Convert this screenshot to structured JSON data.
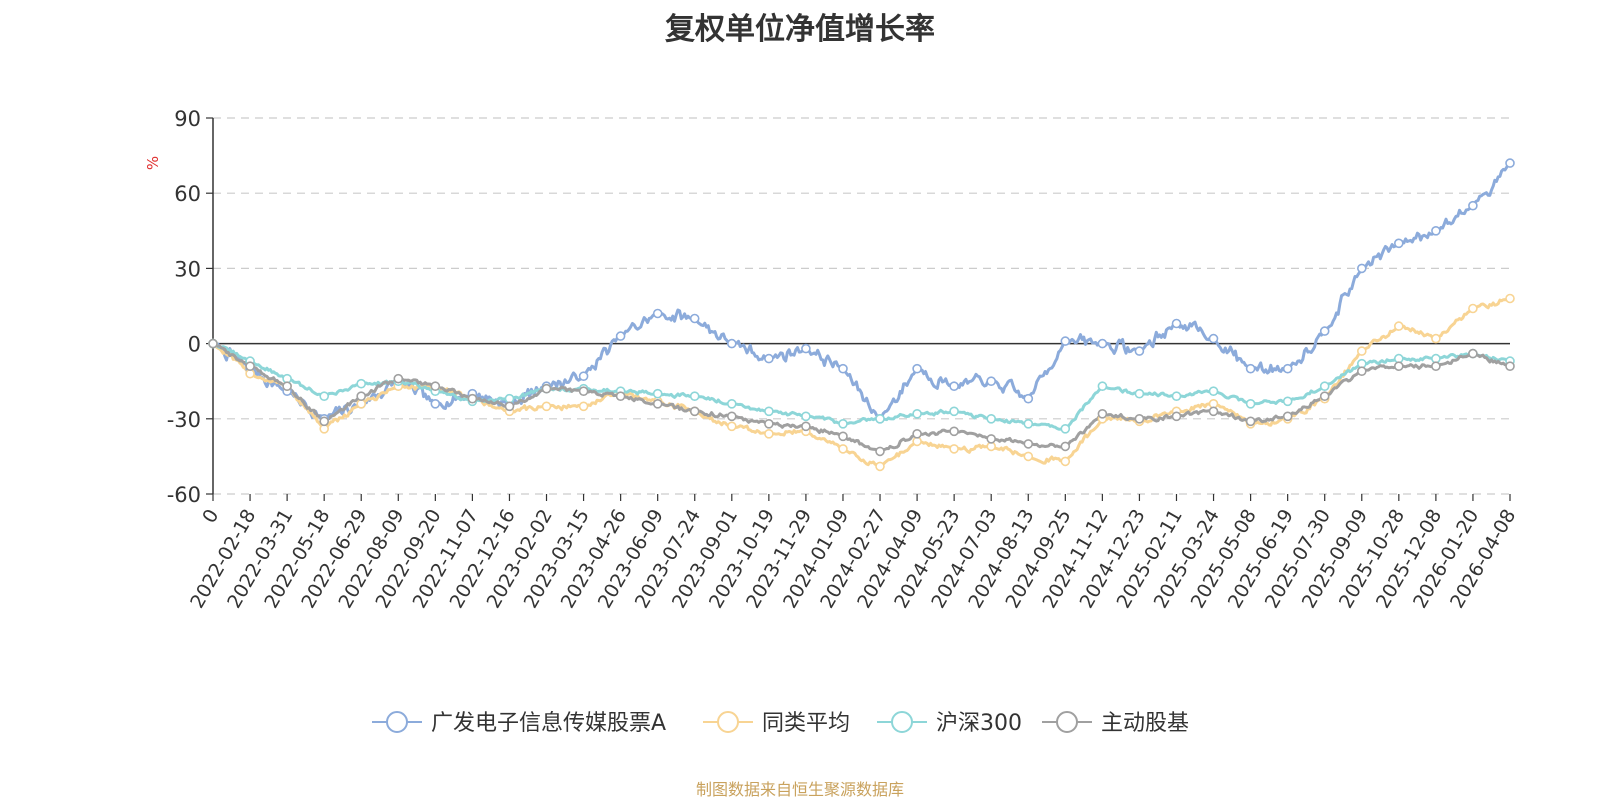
{
  "colors": {
    "series": [
      "#8cabdb",
      "#f8d493",
      "#8dd6d8",
      "#a0a0a0"
    ],
    "grid": "#cccccc",
    "axis": "#333333",
    "text": "#333333",
    "unit": "#e03030",
    "source": "#c9a25d"
  },
  "footer": {
    "source": "制图数据来自恒生聚源数据库"
  },
  "chart_data": {
    "type": "line",
    "title": "复权单位净值增长率",
    "ylabel": "%",
    "ylim": [
      -60,
      90
    ],
    "yticks": [
      90,
      60,
      30,
      0,
      -30,
      -60
    ],
    "grid": true,
    "legend_position": "bottom-center",
    "x_range": [
      "2022-01-04",
      "2026-04-10"
    ],
    "categories": [
      "0",
      "2022-02-18",
      "2022-03-31",
      "2022-05-18",
      "2022-06-29",
      "2022-08-09",
      "2022-09-20",
      "2022-11-07",
      "2022-12-16",
      "2023-02-02",
      "2023-03-15",
      "2023-04-26",
      "2023-06-09",
      "2023-07-24",
      "2023-09-01",
      "2023-10-19",
      "2023-11-29",
      "2024-01-09",
      "2024-02-27",
      "2024-04-09",
      "2024-05-23",
      "2024-07-03",
      "2024-08-13",
      "2024-09-25",
      "2024-11-12",
      "2024-12-23",
      "2025-02-11",
      "2025-03-24",
      "2025-05-08",
      "2025-06-19",
      "2025-07-30",
      "2025-09-09",
      "2025-10-28",
      "2025-12-08",
      "2026-01-20",
      "2026-04-08"
    ],
    "series": [
      {
        "name": "广发电子信息传媒股票A",
        "values": [
          0,
          -10,
          -19,
          -30,
          -24,
          -15,
          -24,
          -20,
          -24,
          -17,
          -13,
          3,
          12,
          10,
          0,
          -6,
          -2,
          -10,
          -30,
          -10,
          -17,
          -15,
          -22,
          1,
          0,
          -3,
          8,
          2,
          -10,
          -10,
          5,
          30,
          40,
          45,
          55,
          72
        ]
      },
      {
        "name": "同类平均",
        "values": [
          0,
          -12,
          -17,
          -34,
          -24,
          -17,
          -18,
          -22,
          -27,
          -25,
          -25,
          -20,
          -23,
          -27,
          -33,
          -36,
          -35,
          -42,
          -49,
          -39,
          -42,
          -41,
          -45,
          -47,
          -30,
          -31,
          -27,
          -24,
          -32,
          -30,
          -22,
          -3,
          7,
          2,
          14,
          18
        ]
      },
      {
        "name": "沪深300",
        "values": [
          0,
          -7,
          -14,
          -21,
          -16,
          -15,
          -19,
          -23,
          -22,
          -18,
          -18,
          -19,
          -20,
          -21,
          -24,
          -27,
          -29,
          -32,
          -30,
          -28,
          -27,
          -30,
          -32,
          -34,
          -17,
          -20,
          -21,
          -19,
          -24,
          -23,
          -17,
          -8,
          -6,
          -6,
          -4,
          -7
        ]
      },
      {
        "name": "主动股基",
        "values": [
          0,
          -9,
          -17,
          -31,
          -21,
          -14,
          -17,
          -22,
          -25,
          -18,
          -19,
          -21,
          -24,
          -27,
          -29,
          -32,
          -33,
          -37,
          -43,
          -36,
          -35,
          -38,
          -40,
          -41,
          -28,
          -30,
          -29,
          -27,
          -31,
          -29,
          -21,
          -11,
          -9,
          -9,
          -4,
          -9
        ]
      }
    ]
  }
}
